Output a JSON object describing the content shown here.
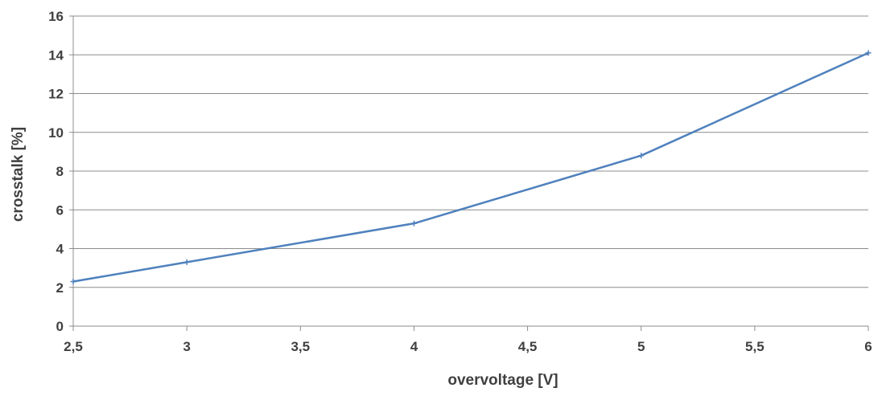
{
  "chart_data": {
    "type": "line",
    "title": "",
    "xlabel": "overvoltage [V]",
    "ylabel": "crosstalk [%]",
    "x": [
      2.5,
      3,
      4,
      5,
      6
    ],
    "series": [
      {
        "values": [
          2.3,
          3.3,
          5.3,
          8.8,
          14.1
        ],
        "color": "#4f81bd"
      }
    ],
    "xlim": [
      2.5,
      6
    ],
    "ylim": [
      0,
      16
    ],
    "x_ticks": [
      "2,5",
      "3",
      "3,5",
      "4",
      "4,5",
      "5",
      "5,5",
      "6"
    ],
    "y_ticks": [
      "0",
      "2",
      "4",
      "6",
      "8",
      "10",
      "12",
      "14",
      "16"
    ],
    "grid": "horizontal",
    "legend": "none",
    "decimal_separator": ","
  }
}
